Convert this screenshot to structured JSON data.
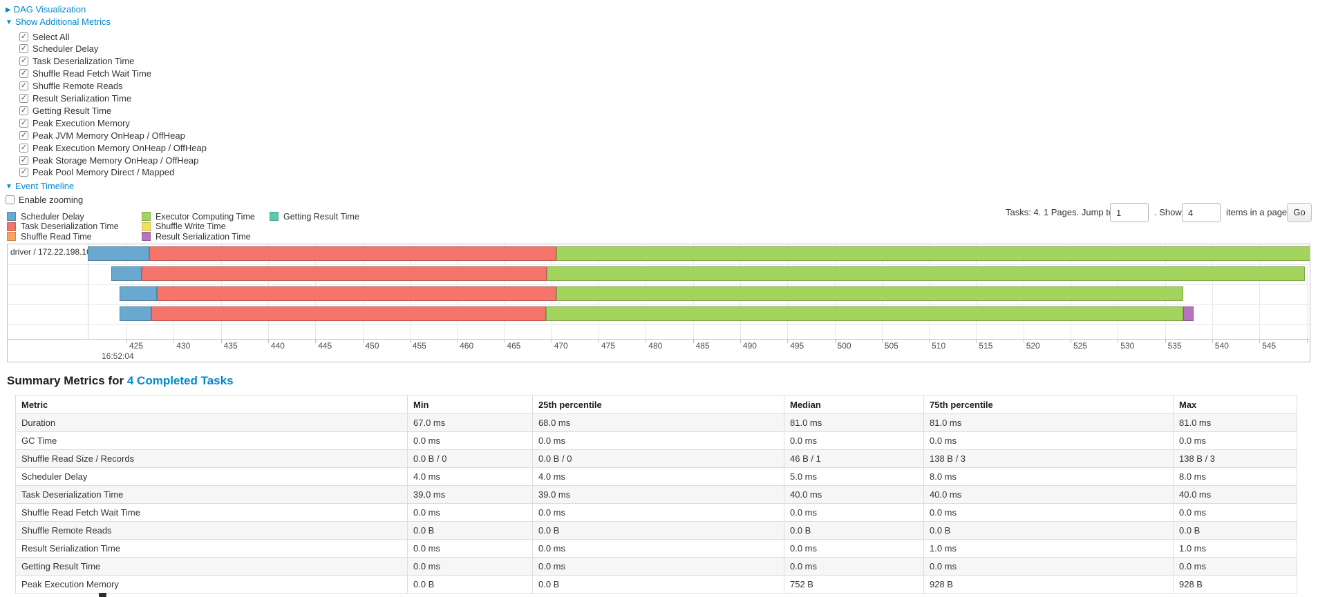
{
  "controls": {
    "dag_section": {
      "arrow": "▶",
      "label": "DAG Visualization"
    },
    "metrics_section": {
      "arrow": "▼",
      "label": "Show Additional Metrics"
    },
    "metric_checkboxes": [
      "Select All",
      "Scheduler Delay",
      "Task Deserialization Time",
      "Shuffle Read Fetch Wait Time",
      "Shuffle Remote Reads",
      "Result Serialization Time",
      "Getting Result Time",
      "Peak Execution Memory",
      "Peak JVM Memory OnHeap / OffHeap",
      "Peak Execution Memory OnHeap / OffHeap",
      "Peak Storage Memory OnHeap / OffHeap",
      "Peak Pool Memory Direct / Mapped"
    ],
    "timeline_section": {
      "arrow": "▼",
      "label": "Event Timeline"
    },
    "enable_zooming": {
      "label": "Enable zooming",
      "checked": false
    }
  },
  "legend": {
    "columns": [
      [
        {
          "label": "Scheduler Delay",
          "color": "#69A9CF"
        },
        {
          "label": "Task Deserialization Time",
          "color": "#F5756C"
        },
        {
          "label": "Shuffle Read Time",
          "color": "#FBA25C"
        }
      ],
      [
        {
          "label": "Executor Computing Time",
          "color": "#A3D55E"
        },
        {
          "label": "Shuffle Write Time",
          "color": "#F2E15A"
        },
        {
          "label": "Result Serialization Time",
          "color": "#B873BE"
        }
      ],
      [
        {
          "label": "Getting Result Time",
          "color": "#5EC9B0"
        }
      ]
    ]
  },
  "pagination": {
    "summary_text": "Tasks: 4. 1 Pages. Jump to",
    "jump_value": "1",
    "show_label": ". Show",
    "show_value": "4",
    "items_label": "items in a page.",
    "go_label": "Go"
  },
  "chart_data": {
    "type": "timeline",
    "group_label": "driver / 172.22.198.104",
    "x_axis": {
      "unit": "ms of second 16:52:04",
      "tick_start": 425,
      "tick_end": 550,
      "tick_step": 5,
      "time_label": "16:52:04"
    },
    "legend_note": "segment colors keyed to event-timeline legend",
    "tasks": [
      {
        "segments": [
          {
            "kind": "scheduler_delay",
            "color": "#69A9CF",
            "start": 420.9,
            "end": 427.4
          },
          {
            "kind": "task_deserialization",
            "color": "#F5756C",
            "start": 427.4,
            "end": 470.5
          },
          {
            "kind": "executor_computing",
            "color": "#A3D55E",
            "start": 470.5,
            "end": 550.5
          }
        ]
      },
      {
        "segments": [
          {
            "kind": "scheduler_delay",
            "color": "#69A9CF",
            "start": 423.4,
            "end": 426.6
          },
          {
            "kind": "task_deserialization",
            "color": "#F5756C",
            "start": 426.6,
            "end": 469.5
          },
          {
            "kind": "executor_computing",
            "color": "#A3D55E",
            "start": 469.5,
            "end": 549.8
          }
        ]
      },
      {
        "segments": [
          {
            "kind": "scheduler_delay",
            "color": "#69A9CF",
            "start": 424.3,
            "end": 428.2
          },
          {
            "kind": "task_deserialization",
            "color": "#F5756C",
            "start": 428.2,
            "end": 470.5
          },
          {
            "kind": "executor_computing",
            "color": "#A3D55E",
            "start": 470.5,
            "end": 536.9
          }
        ]
      },
      {
        "segments": [
          {
            "kind": "scheduler_delay",
            "color": "#69A9CF",
            "start": 424.3,
            "end": 427.6
          },
          {
            "kind": "task_deserialization",
            "color": "#F5756C",
            "start": 427.6,
            "end": 469.4
          },
          {
            "kind": "executor_computing",
            "color": "#A3D55E",
            "start": 469.4,
            "end": 536.9
          },
          {
            "kind": "result_serialization",
            "color": "#B873BE",
            "start": 536.9,
            "end": 538.0
          }
        ]
      }
    ]
  },
  "summary_metrics": {
    "heading_prefix": "Summary Metrics for",
    "heading_link": "4 Completed Tasks",
    "headers": [
      "Metric",
      "Min",
      "25th percentile",
      "Median",
      "75th percentile",
      "Max"
    ],
    "rows": [
      {
        "metric": "Duration",
        "values": [
          "67.0 ms",
          "68.0 ms",
          "81.0 ms",
          "81.0 ms",
          "81.0 ms"
        ]
      },
      {
        "metric": "GC Time",
        "values": [
          "0.0 ms",
          "0.0 ms",
          "0.0 ms",
          "0.0 ms",
          "0.0 ms"
        ]
      },
      {
        "metric": "Shuffle Read Size / Records",
        "values": [
          "0.0 B / 0",
          "0.0 B / 0",
          "46 B / 1",
          "138 B / 3",
          "138 B / 3"
        ]
      },
      {
        "metric": "Scheduler Delay",
        "values": [
          "4.0 ms",
          "4.0 ms",
          "5.0 ms",
          "8.0 ms",
          "8.0 ms"
        ]
      },
      {
        "metric": "Task Deserialization Time",
        "values": [
          "39.0 ms",
          "39.0 ms",
          "40.0 ms",
          "40.0 ms",
          "40.0 ms"
        ]
      },
      {
        "metric": "Shuffle Read Fetch Wait Time",
        "values": [
          "0.0 ms",
          "0.0 ms",
          "0.0 ms",
          "0.0 ms",
          "0.0 ms"
        ]
      },
      {
        "metric": "Shuffle Remote Reads",
        "values": [
          "0.0 B",
          "0.0 B",
          "0.0 B",
          "0.0 B",
          "0.0 B"
        ]
      },
      {
        "metric": "Result Serialization Time",
        "values": [
          "0.0 ms",
          "0.0 ms",
          "0.0 ms",
          "1.0 ms",
          "1.0 ms"
        ]
      },
      {
        "metric": "Getting Result Time",
        "values": [
          "0.0 ms",
          "0.0 ms",
          "0.0 ms",
          "0.0 ms",
          "0.0 ms"
        ]
      },
      {
        "metric": "Peak Execution Memory",
        "values": [
          "0.0 B",
          "0.0 B",
          "752 B",
          "928 B",
          "928 B"
        ]
      }
    ]
  }
}
